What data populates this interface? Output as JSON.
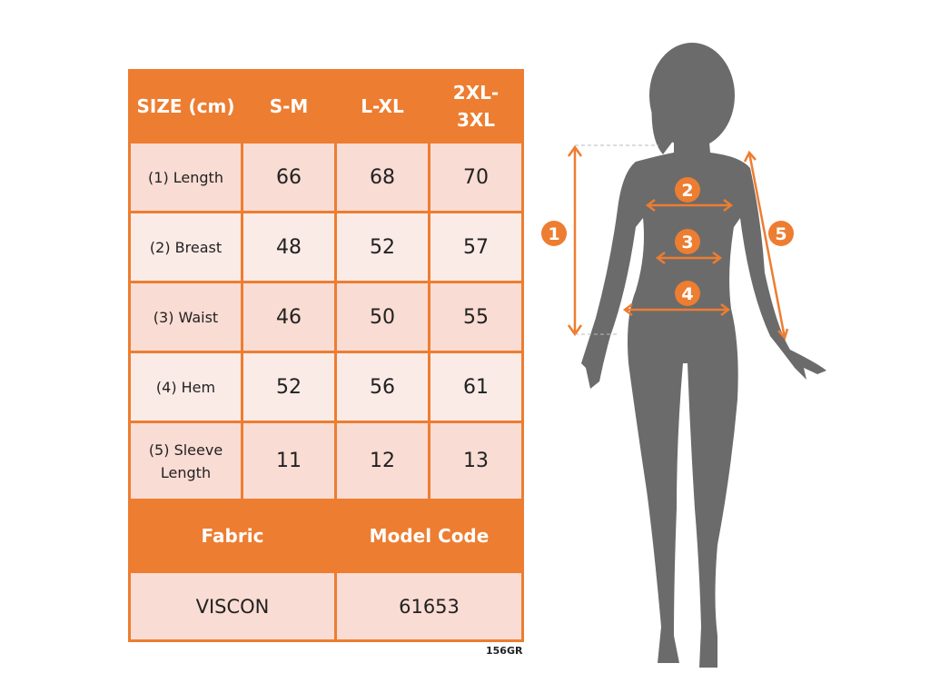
{
  "table": {
    "header": [
      "SIZE (cm)",
      "S-M",
      "L-XL",
      "2XL-3XL"
    ],
    "rows": [
      {
        "label": "(1) Length",
        "values": [
          "66",
          "68",
          "70"
        ]
      },
      {
        "label": "(2) Breast",
        "values": [
          "48",
          "52",
          "57"
        ]
      },
      {
        "label": "(3) Waist",
        "values": [
          "46",
          "50",
          "55"
        ]
      },
      {
        "label": "(4) Hem",
        "values": [
          "52",
          "56",
          "61"
        ]
      },
      {
        "label": "(5) Sleeve Length",
        "values": [
          "11",
          "12",
          "13"
        ]
      }
    ],
    "footer_header": [
      "Fabric",
      "Model Code"
    ],
    "footer_values": [
      "VISCON",
      "61653"
    ]
  },
  "code": "156GR",
  "figure": {
    "markers": [
      "1",
      "2",
      "3",
      "4",
      "5"
    ]
  },
  "colors": {
    "accent": "#ed7d31",
    "silhouette": "#6b6b6b",
    "row_dark": "#f9dcd3",
    "row_light": "#fbebe6"
  }
}
